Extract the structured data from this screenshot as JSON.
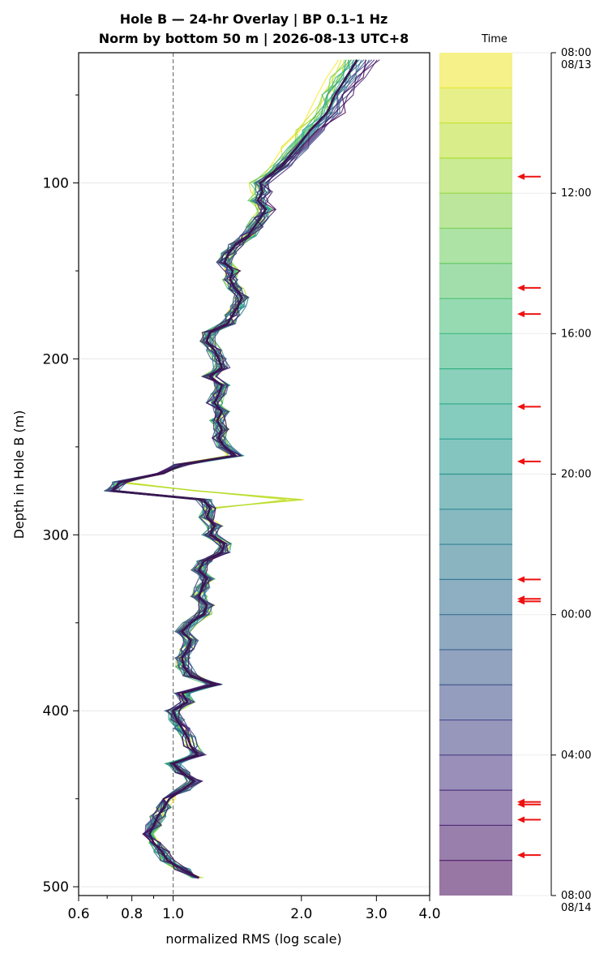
{
  "chart_data": {
    "type": "line",
    "title": "Hole B — 24-hr Overlay  |  BP 0.1–1 Hz",
    "subtitle": "Norm by bottom 50 m  |  2026-08-13 UTC+8",
    "xlabel": "normalized RMS  (log scale)",
    "ylabel": "Depth in Hole B (m)",
    "x_scale": "log",
    "xlim": [
      0.6,
      4.0
    ],
    "ylim": [
      505,
      26
    ],
    "x_ticks": [
      "0.6",
      "0.8",
      "1.0",
      "2.0",
      "3.0",
      "4.0"
    ],
    "x_tick_values": [
      0.6,
      0.8,
      1.0,
      2.0,
      3.0,
      4.0
    ],
    "y_ticks": [
      "100",
      "200",
      "300",
      "400",
      "500"
    ],
    "y_tick_values": [
      100,
      200,
      300,
      400,
      500
    ],
    "reference_line_x": 1.0,
    "grid": "horizontal",
    "colormap": "viridis",
    "median_profile": {
      "depth": [
        30,
        40,
        50,
        60,
        70,
        80,
        90,
        100,
        105,
        110,
        115,
        120,
        125,
        130,
        135,
        140,
        145,
        150,
        155,
        160,
        165,
        170,
        175,
        180,
        185,
        190,
        195,
        200,
        205,
        210,
        215,
        220,
        225,
        230,
        235,
        240,
        245,
        250,
        255,
        260,
        265,
        270,
        275,
        280,
        285,
        290,
        295,
        300,
        305,
        310,
        315,
        320,
        325,
        330,
        335,
        340,
        345,
        350,
        355,
        360,
        365,
        370,
        375,
        380,
        385,
        390,
        395,
        400,
        405,
        410,
        415,
        420,
        425,
        430,
        435,
        440,
        445,
        450,
        455,
        460,
        465,
        470,
        475,
        480,
        485,
        490,
        495
      ],
      "value": [
        2.7,
        2.55,
        2.4,
        2.3,
        2.1,
        1.95,
        1.8,
        1.6,
        1.62,
        1.58,
        1.65,
        1.6,
        1.55,
        1.5,
        1.4,
        1.35,
        1.32,
        1.38,
        1.36,
        1.4,
        1.45,
        1.42,
        1.38,
        1.34,
        1.22,
        1.2,
        1.25,
        1.28,
        1.3,
        1.22,
        1.3,
        1.28,
        1.25,
        1.3,
        1.27,
        1.3,
        1.28,
        1.32,
        1.4,
        1.05,
        0.95,
        0.75,
        0.72,
        1.18,
        1.22,
        1.2,
        1.25,
        1.22,
        1.32,
        1.3,
        1.18,
        1.15,
        1.2,
        1.17,
        1.15,
        1.2,
        1.18,
        1.1,
        1.05,
        1.1,
        1.08,
        1.05,
        1.06,
        1.1,
        1.25,
        1.05,
        1.08,
        1.0,
        1.02,
        1.05,
        1.08,
        1.1,
        1.14,
        1.0,
        1.05,
        1.12,
        1.05,
        0.98,
        0.95,
        0.92,
        0.9,
        0.88,
        0.9,
        0.94,
        0.97,
        1.05,
        1.15
      ]
    },
    "series_count": 24,
    "colorbar": {
      "label": "Time",
      "ticks": [
        "08:00\n08/13",
        "12:00",
        "16:00",
        "20:00",
        "00:00",
        "04:00",
        "08:00\n08/14"
      ],
      "tick_fractions": [
        0,
        0.1667,
        0.3333,
        0.5,
        0.6667,
        0.8333,
        1.0
      ],
      "band_count": 24,
      "arrow_fractions": [
        0.147,
        0.279,
        0.31,
        0.42,
        0.485,
        0.625,
        0.648,
        0.651,
        0.889,
        0.892,
        0.91,
        0.952
      ]
    }
  }
}
